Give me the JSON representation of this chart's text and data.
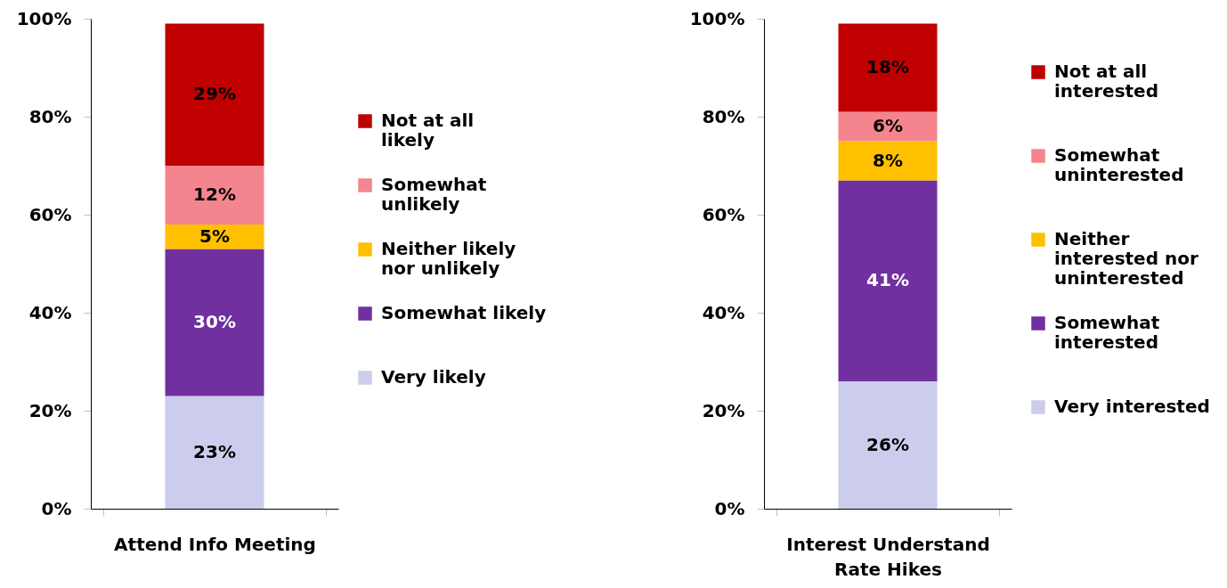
{
  "chart_data": [
    {
      "type": "bar",
      "stacked": true,
      "categories": [
        "Attend Info Meeting"
      ],
      "series": [
        {
          "name": "Very likely",
          "color": "#ccccec",
          "values": [
            23
          ],
          "value_labels": [
            "23%"
          ]
        },
        {
          "name": "Somewhat likely",
          "color": "#7030a0",
          "values": [
            30
          ],
          "value_labels": [
            "30%"
          ]
        },
        {
          "name": "Neither likely nor unlikely",
          "color": "#ffc000",
          "values": [
            5
          ],
          "value_labels": [
            "5%"
          ]
        },
        {
          "name": "Somewhat unlikely",
          "color": "#f4858e",
          "values": [
            12
          ],
          "value_labels": [
            "12%"
          ]
        },
        {
          "name": "Not at all likely",
          "color": "#c00000",
          "values": [
            29
          ],
          "value_labels": [
            "29%"
          ]
        }
      ],
      "ylim": [
        0,
        100
      ],
      "yticks": [
        {
          "value": 0,
          "label": "0%"
        },
        {
          "value": 20,
          "label": "20%"
        },
        {
          "value": 40,
          "label": "40%"
        },
        {
          "value": 60,
          "label": "60%"
        },
        {
          "value": 80,
          "label": "80%"
        },
        {
          "value": 100,
          "label": "100%"
        }
      ],
      "grid": false,
      "legend": "right"
    },
    {
      "type": "bar",
      "stacked": true,
      "categories": [
        "Interest Understand Rate Hikes"
      ],
      "series": [
        {
          "name": "Very interested",
          "color": "#ccccec",
          "values": [
            26
          ],
          "value_labels": [
            "26%"
          ]
        },
        {
          "name": "Somewhat interested",
          "color": "#7030a0",
          "values": [
            41
          ],
          "value_labels": [
            "41%"
          ]
        },
        {
          "name": "Neither interested nor uninterested",
          "color": "#ffc000",
          "values": [
            8
          ],
          "value_labels": [
            "8%"
          ]
        },
        {
          "name": "Somewhat uninterested",
          "color": "#f4858e",
          "values": [
            6
          ],
          "value_labels": [
            "6%"
          ]
        },
        {
          "name": "Not at all interested",
          "color": "#c00000",
          "values": [
            18
          ],
          "value_labels": [
            "18%"
          ]
        }
      ],
      "ylim": [
        0,
        100
      ],
      "yticks": [
        {
          "value": 0,
          "label": "0%"
        },
        {
          "value": 20,
          "label": "20%"
        },
        {
          "value": 40,
          "label": "40%"
        },
        {
          "value": 60,
          "label": "60%"
        },
        {
          "value": 80,
          "label": "80%"
        },
        {
          "value": 100,
          "label": "100%"
        }
      ],
      "grid": false,
      "legend": "right"
    }
  ]
}
